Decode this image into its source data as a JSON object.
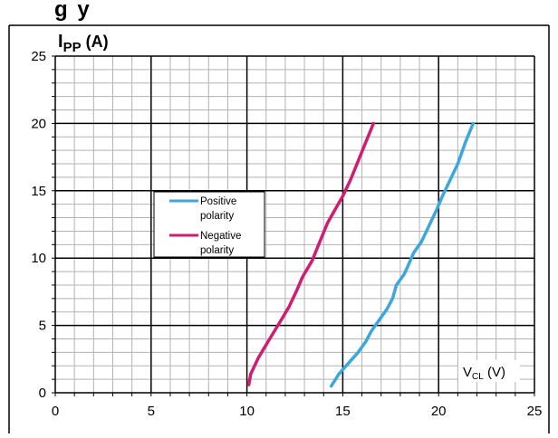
{
  "page_header": {
    "title_visible": "g   y"
  },
  "chart_data": {
    "type": "line",
    "title": "",
    "ylabel": {
      "main": "I",
      "sub": "PP",
      "unit": " (A)"
    },
    "xlabel": {
      "main": "V",
      "sub": "CL",
      "unit": " (V)"
    },
    "xlim": [
      0,
      25
    ],
    "ylim": [
      0,
      25
    ],
    "x_major_ticks": [
      0,
      5,
      10,
      15,
      20,
      25
    ],
    "y_major_ticks": [
      0,
      5,
      10,
      15,
      20,
      25
    ],
    "x_tick_labels": [
      "0",
      "5",
      "10",
      "15",
      "20",
      "25"
    ],
    "y_tick_labels": [
      "0",
      "5",
      "10",
      "15",
      "20",
      "25"
    ],
    "minor_step": 1,
    "grid": true,
    "legend_position": "center-left",
    "series": [
      {
        "name": "Positive polarity",
        "name_lines": [
          "Positive",
          "polarity"
        ],
        "color": "#3aa8dc",
        "points": [
          [
            14.4,
            0.5
          ],
          [
            14.8,
            1.4
          ],
          [
            15.3,
            2.2
          ],
          [
            15.8,
            3.0
          ],
          [
            16.2,
            3.8
          ],
          [
            16.5,
            4.6
          ],
          [
            16.9,
            5.4
          ],
          [
            17.3,
            6.2
          ],
          [
            17.6,
            7.0
          ],
          [
            17.8,
            8.0
          ],
          [
            18.2,
            8.8
          ],
          [
            18.4,
            9.4
          ],
          [
            18.7,
            10.4
          ],
          [
            19.1,
            11.2
          ],
          [
            19.5,
            12.4
          ],
          [
            19.9,
            13.6
          ],
          [
            20.2,
            14.6
          ],
          [
            20.6,
            15.8
          ],
          [
            21.0,
            17.0
          ],
          [
            21.4,
            18.6
          ],
          [
            21.8,
            20.0
          ]
        ]
      },
      {
        "name": "Negative polarity",
        "name_lines": [
          "Negative",
          "polarity"
        ],
        "color": "#d01c73",
        "points": [
          [
            10.1,
            0.6
          ],
          [
            10.2,
            1.4
          ],
          [
            10.6,
            2.6
          ],
          [
            11.1,
            3.8
          ],
          [
            11.7,
            5.2
          ],
          [
            12.2,
            6.4
          ],
          [
            12.6,
            7.6
          ],
          [
            12.9,
            8.6
          ],
          [
            13.4,
            9.8
          ],
          [
            13.8,
            11.2
          ],
          [
            14.2,
            12.6
          ],
          [
            14.6,
            13.6
          ],
          [
            15.0,
            14.6
          ],
          [
            15.4,
            15.8
          ],
          [
            15.8,
            17.2
          ],
          [
            16.2,
            18.6
          ],
          [
            16.6,
            20.0
          ]
        ]
      }
    ]
  }
}
